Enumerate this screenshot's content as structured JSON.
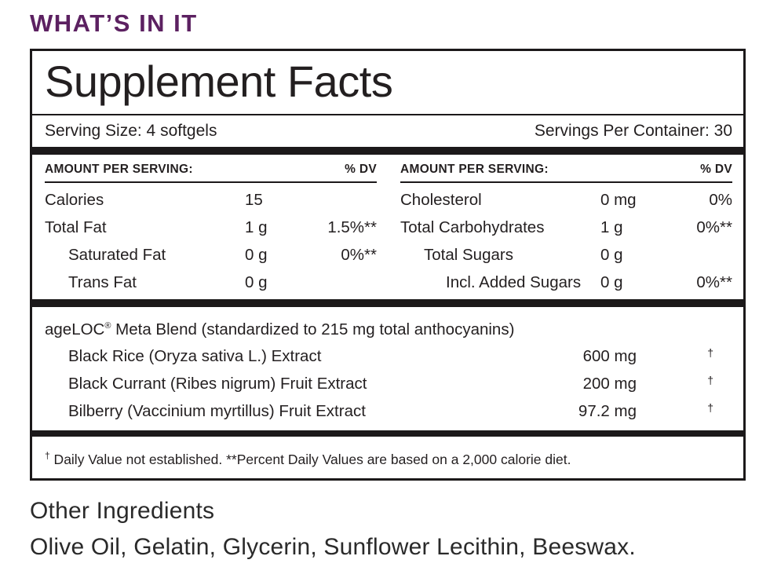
{
  "page": {
    "heading": "WHAT’S IN IT"
  },
  "panel": {
    "title": "Supplement Facts",
    "serving_size": "Serving Size: 4 softgels",
    "servings_per_container": "Servings Per Container: 30",
    "columns": [
      {
        "header": "AMOUNT PER SERVING:",
        "dv_header": "% DV",
        "rows": [
          {
            "name": "Calories",
            "amount": "15",
            "dv": "",
            "indent": 0
          },
          {
            "name": "Total Fat",
            "amount": "1 g",
            "dv": "1.5%**",
            "indent": 0
          },
          {
            "name": "Saturated Fat",
            "amount": "0 g",
            "dv": "0%**",
            "indent": 1
          },
          {
            "name": "Trans Fat",
            "amount": "0 g",
            "dv": "",
            "indent": 1
          }
        ]
      },
      {
        "header": "AMOUNT PER SERVING:",
        "dv_header": "% DV",
        "rows": [
          {
            "name": "Cholesterol",
            "amount": "0 mg",
            "dv": "0%",
            "indent": 0
          },
          {
            "name": "Total Carbohydrates",
            "amount": "1 g",
            "dv": "0%**",
            "indent": 0
          },
          {
            "name": "Total Sugars",
            "amount": "0 g",
            "dv": "",
            "indent": 1
          },
          {
            "name": "Incl. Added Sugars",
            "amount": "0 g",
            "dv": "0%**",
            "indent": 2
          }
        ]
      }
    ],
    "blend": {
      "title_brand": "ageLOC",
      "title_mark": "®",
      "title_rest": " Meta Blend (standardized to 215 mg total anthocyanins)",
      "rows": [
        {
          "name": "Black Rice (Oryza sativa L.) Extract",
          "amount": "600 mg",
          "dv": "†"
        },
        {
          "name": "Black Currant (Ribes nigrum) Fruit Extract",
          "amount": "200 mg",
          "dv": "†"
        },
        {
          "name": "Bilberry (Vaccinium myrtillus) Fruit Extract",
          "amount": "97.2 mg",
          "dv": "†"
        }
      ]
    },
    "footnote": {
      "dagger": "†",
      "text": " Daily Value not established.  **Percent Daily Values are based on a 2,000 calorie diet."
    }
  },
  "other_ingredients": {
    "heading": "Other Ingredients",
    "text": "Olive Oil, Gelatin, Glycerin, Sunflower Lecithin, Beeswax."
  },
  "colors": {
    "heading_purple": "#5c2161",
    "label_text": "#231f20",
    "bar_black": "#1c191a"
  }
}
